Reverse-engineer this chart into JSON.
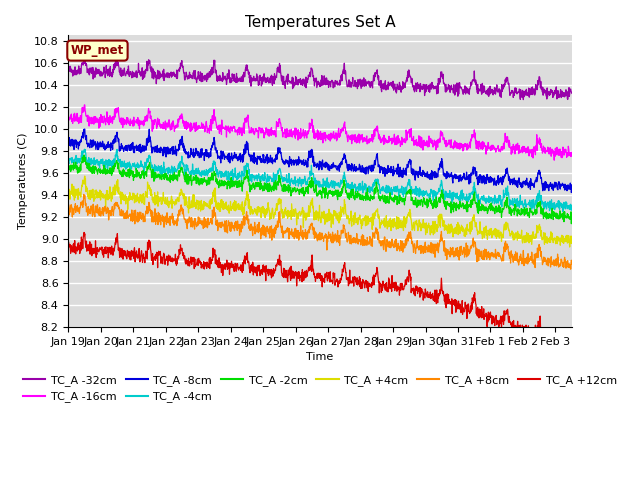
{
  "title": "Temperatures Set A",
  "xlabel": "Time",
  "ylabel": "Temperatures (C)",
  "ylim": [
    8.2,
    10.85
  ],
  "xlim_days": 15.5,
  "background_color": "#dcdcdc",
  "grid_color": "white",
  "annotation_text": "WP_met",
  "annotation_bg": "#ffffcc",
  "annotation_border": "#8b0000",
  "series": [
    {
      "label": "TC_A -32cm",
      "color": "#9900aa",
      "start": 10.53,
      "end": 10.31,
      "noise": 0.025,
      "spike_mag": 0.13
    },
    {
      "label": "TC_A -16cm",
      "color": "#ff00ff",
      "start": 10.1,
      "end": 9.78,
      "noise": 0.025,
      "spike_mag": 0.11
    },
    {
      "label": "TC_A -8cm",
      "color": "#0000dd",
      "start": 9.88,
      "end": 9.47,
      "noise": 0.022,
      "spike_mag": 0.12
    },
    {
      "label": "TC_A -4cm",
      "color": "#00cccc",
      "start": 9.72,
      "end": 9.29,
      "noise": 0.022,
      "spike_mag": 0.1
    },
    {
      "label": "TC_A -2cm",
      "color": "#00dd00",
      "start": 9.65,
      "end": 9.2,
      "noise": 0.022,
      "spike_mag": 0.1
    },
    {
      "label": "TC_A +4cm",
      "color": "#dddd00",
      "start": 9.43,
      "end": 8.98,
      "noise": 0.03,
      "spike_mag": 0.12
    },
    {
      "label": "TC_A +8cm",
      "color": "#ff8800",
      "start": 9.28,
      "end": 8.77,
      "noise": 0.03,
      "spike_mag": 0.12
    },
    {
      "label": "TC_A +12cm",
      "color": "#dd0000",
      "start": 8.93,
      "end": 8.37,
      "noise": 0.03,
      "extra_drop_start": 10.5,
      "extra_drop": 0.35,
      "spike_mag": 0.13
    }
  ],
  "xticks": {
    "labels": [
      "Jan 19",
      "Jan 20",
      "Jan 21",
      "Jan 22",
      "Jan 23",
      "Jan 24",
      "Jan 25",
      "Jan 26",
      "Jan 27",
      "Jan 28",
      "Jan 29",
      "Jan 30",
      "Jan 31",
      "Feb 1",
      "Feb 2",
      "Feb 3"
    ],
    "positions": [
      0,
      1,
      2,
      3,
      4,
      5,
      6,
      7,
      8,
      9,
      10,
      11,
      12,
      13,
      14,
      15
    ]
  },
  "yticks": [
    8.2,
    8.4,
    8.6,
    8.8,
    9.0,
    9.2,
    9.4,
    9.6,
    9.8,
    10.0,
    10.2,
    10.4,
    10.6,
    10.8
  ],
  "n_points": 1500,
  "legend_ncol": 6,
  "legend_fontsize": 8,
  "title_fontsize": 11,
  "axis_fontsize": 8
}
